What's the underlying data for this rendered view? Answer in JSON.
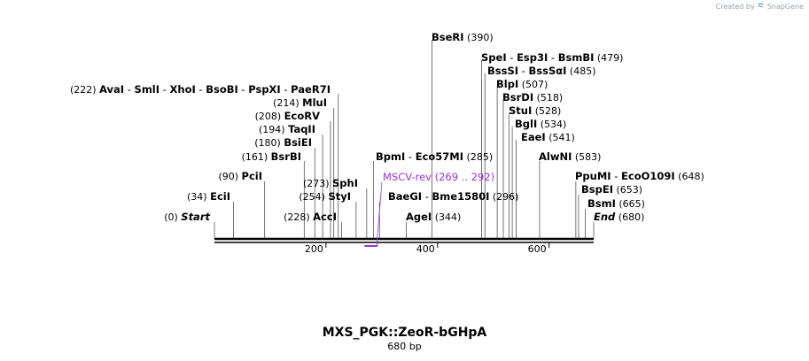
{
  "credit": {
    "prefix": "Created by",
    "brand": "SnapGene",
    "icon": "snapgene-logo-icon"
  },
  "title": {
    "name": "MXS_PGK::ZeoR-bGHpA",
    "size": "680 bp"
  },
  "sequence": {
    "length": 680,
    "ticks": [
      200,
      400,
      600
    ]
  },
  "primer": {
    "name": "MSCV-rev",
    "range": "(269 .. 292)",
    "start": 269,
    "end": 292,
    "color": "#9933cc"
  },
  "features": [
    {
      "id": "start",
      "pos": 0,
      "pos_label": "(0)",
      "names": [
        "Start"
      ],
      "style": "italic"
    },
    {
      "id": "ecii",
      "pos": 34,
      "pos_label": "(34)",
      "names": [
        "EciI"
      ]
    },
    {
      "id": "pcii",
      "pos": 90,
      "pos_label": "(90)",
      "names": [
        "PciI"
      ]
    },
    {
      "id": "bsrbi",
      "pos": 161,
      "pos_label": "(161)",
      "names": [
        "BsrBI"
      ]
    },
    {
      "id": "bsiei",
      "pos": 180,
      "pos_label": "(180)",
      "names": [
        "BsiEI"
      ]
    },
    {
      "id": "taqii",
      "pos": 194,
      "pos_label": "(194)",
      "names": [
        "TaqII"
      ]
    },
    {
      "id": "ecorv",
      "pos": 208,
      "pos_label": "(208)",
      "names": [
        "EcoRV"
      ]
    },
    {
      "id": "mlui",
      "pos": 214,
      "pos_label": "(214)",
      "names": [
        "MluI"
      ]
    },
    {
      "id": "avai",
      "pos": 222,
      "pos_label": "(222)",
      "names": [
        "AvaI",
        "SmlI",
        "XhoI",
        "BsoBI",
        "PspXI",
        "PaeR7I"
      ]
    },
    {
      "id": "acci",
      "pos": 228,
      "pos_label": "(228)",
      "names": [
        "AccI"
      ]
    },
    {
      "id": "styi",
      "pos": 254,
      "pos_label": "(254)",
      "names": [
        "StyI"
      ]
    },
    {
      "id": "sphi",
      "pos": 273,
      "pos_label": "(273)",
      "names": [
        "SphI"
      ]
    },
    {
      "id": "bpmi",
      "pos": 285,
      "pos_label": "(285)",
      "names": [
        "BpmI",
        "Eco57MI"
      ]
    },
    {
      "id": "baegi",
      "pos": 296,
      "pos_label": "(296)",
      "names": [
        "BaeGI",
        "Bme1580I"
      ]
    },
    {
      "id": "agei",
      "pos": 344,
      "pos_label": "(344)",
      "names": [
        "AgeI"
      ]
    },
    {
      "id": "beseri",
      "pos": 390,
      "pos_label": "(390)",
      "names": [
        "BseRI"
      ]
    },
    {
      "id": "spei",
      "pos": 479,
      "pos_label": "(479)",
      "names": [
        "SpeI",
        "Esp3I",
        "BsmBI"
      ]
    },
    {
      "id": "bsssi",
      "pos": 485,
      "pos_label": "(485)",
      "names": [
        "BssSI",
        "BssSαI"
      ]
    },
    {
      "id": "blpi",
      "pos": 507,
      "pos_label": "(507)",
      "names": [
        "BlpI"
      ]
    },
    {
      "id": "bsrdi",
      "pos": 518,
      "pos_label": "(518)",
      "names": [
        "BsrDI"
      ]
    },
    {
      "id": "stui",
      "pos": 528,
      "pos_label": "(528)",
      "names": [
        "StuI"
      ]
    },
    {
      "id": "bglI",
      "pos": 534,
      "pos_label": "(534)",
      "names": [
        "BglI"
      ]
    },
    {
      "id": "eaei",
      "pos": 541,
      "pos_label": "(541)",
      "names": [
        "EaeI"
      ]
    },
    {
      "id": "alwni",
      "pos": 583,
      "pos_label": "(583)",
      "names": [
        "AlwNI"
      ]
    },
    {
      "id": "ppumi",
      "pos": 648,
      "pos_label": "(648)",
      "names": [
        "PpuMI",
        "EcoO109I"
      ]
    },
    {
      "id": "bspei",
      "pos": 653,
      "pos_label": "(653)",
      "names": [
        "BspEI"
      ]
    },
    {
      "id": "bsmi",
      "pos": 665,
      "pos_label": "(665)",
      "names": [
        "BsmI"
      ]
    },
    {
      "id": "end",
      "pos": 680,
      "pos_label": "(680)",
      "names": [
        "End"
      ],
      "style": "italic"
    }
  ]
}
